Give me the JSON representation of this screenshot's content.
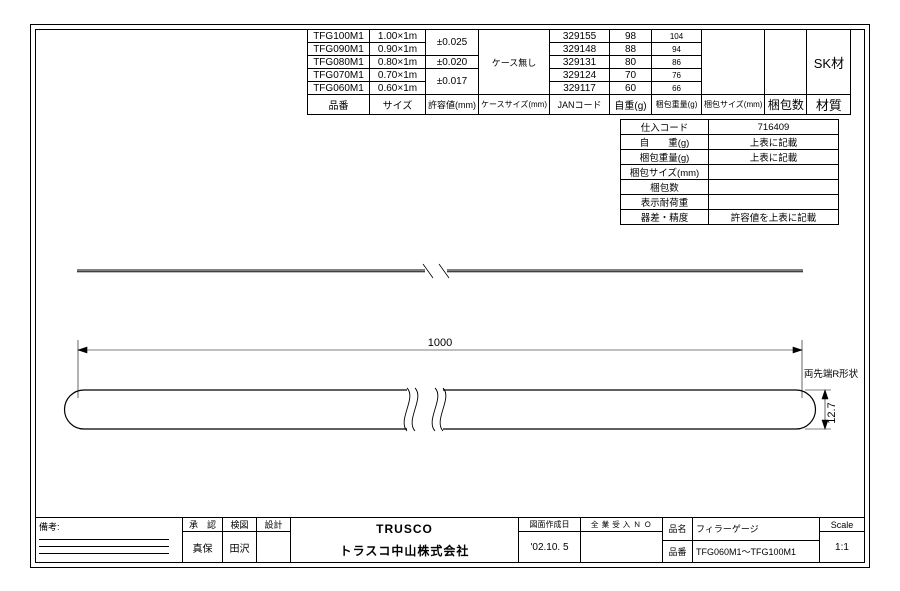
{
  "spec_table": {
    "headers": {
      "partno": "品番",
      "size": "サイズ",
      "tol": "許容値(mm)",
      "case": "ケースサイズ(mm)",
      "jan": "JANコード",
      "wt": "自重(g)",
      "pw": "梱包重量(g)",
      "ps": "梱包サイズ(mm)",
      "pq": "梱包数",
      "mat": "材質"
    },
    "rows": [
      {
        "partno": "TFG100M1",
        "size": "1.00×1m",
        "jan": "329155",
        "wt": "98",
        "pw": "104"
      },
      {
        "partno": "TFG090M1",
        "size": "0.90×1m",
        "jan": "329148",
        "wt": "88",
        "pw": "94"
      },
      {
        "partno": "TFG080M1",
        "size": "0.80×1m",
        "jan": "329131",
        "wt": "80",
        "pw": "86"
      },
      {
        "partno": "TFG070M1",
        "size": "0.70×1m",
        "jan": "329124",
        "wt": "70",
        "pw": "76"
      },
      {
        "partno": "TFG060M1",
        "size": "0.60×1m",
        "jan": "329117",
        "wt": "60",
        "pw": "66"
      }
    ],
    "tol12": "±0.025",
    "tol3": "±0.020",
    "tol45": "±0.017",
    "case_merged": "ケース無し",
    "mat_merged": "SK材"
  },
  "meta_table": {
    "rows": [
      {
        "k": "仕入コード",
        "v": "716409"
      },
      {
        "k": "自　　重(g)",
        "v": "上表に記載"
      },
      {
        "k": "梱包重量(g)",
        "v": "上表に記載"
      },
      {
        "k": "梱包サイズ(mm)",
        "v": ""
      },
      {
        "k": "梱包数",
        "v": ""
      },
      {
        "k": "表示耐荷重",
        "v": ""
      },
      {
        "k": "器差・精度",
        "v": "許容値を上表に記載"
      }
    ]
  },
  "drawing": {
    "length_dim": "1000",
    "width_dim": "12.7",
    "end_note": "両先端R形状",
    "stroke": "#000000",
    "stroke_thin": 0.7,
    "stroke_med": 1
  },
  "title_block": {
    "remarks_label": "備考:",
    "approve_label": "承　認",
    "approve_val": "真保",
    "check_label": "検図",
    "check_val": "田沢",
    "design_label": "設計",
    "design_val": "",
    "logo_text": "TRUSCO",
    "company": "トラスコ中山株式会社",
    "date_label": "図面作成日",
    "date_val": "'02.10. 5",
    "job_label": "全 業 受 入 Ｎ Ｏ",
    "job_val": "",
    "prod_name_label": "品名",
    "prod_name_val": "フィラーゲージ",
    "prod_no_label": "品番",
    "prod_no_val": "TFG060M1～TFG100M1",
    "scale_label": "Scale",
    "scale_val": "1:1"
  }
}
